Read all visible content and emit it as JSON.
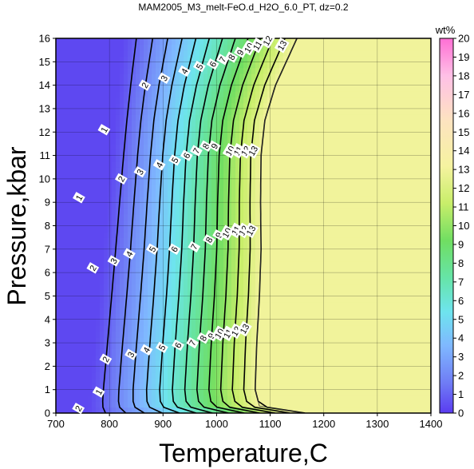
{
  "chart_data": {
    "type": "heatmap",
    "title": "MAM2005_M3_melt-FeO.d_H2O_6.0_PT, dz=0.2",
    "xlabel": "Temperature,C",
    "ylabel": "Pressure,kbar",
    "xlim": [
      700,
      1400
    ],
    "ylim": [
      0,
      16
    ],
    "x_ticks": [
      "700",
      "800",
      "900",
      "1000",
      "1100",
      "1200",
      "1300",
      "1400"
    ],
    "y_ticks": [
      "0",
      "1",
      "2",
      "3",
      "4",
      "5",
      "6",
      "7",
      "8",
      "9",
      "10",
      "11",
      "12",
      "13",
      "14",
      "15",
      "16"
    ],
    "grid": true,
    "colorbar": {
      "label": "wt%",
      "range": [
        0,
        20
      ],
      "ticks": [
        "0",
        "1",
        "2",
        "3",
        "4",
        "5",
        "6",
        "7",
        "8",
        "9",
        "10",
        "11",
        "12",
        "13",
        "14",
        "15",
        "16",
        "17",
        "18",
        "19",
        "20"
      ]
    },
    "colors": {
      "low": "#6a5de8",
      "mid_blue": "#7fb6ff",
      "cyan": "#6fe0ee",
      "green": "#70de62",
      "yellow_green": "#dcf070",
      "plateau": "#fdf2a8",
      "pink_top": "#ff7fd8"
    },
    "plateau_value": 13,
    "solidus_temperature_by_pressure": [
      {
        "p": 0,
        "t": 1165
      },
      {
        "p": 0.3,
        "t": 1080
      },
      {
        "p": 1,
        "t": 1072
      },
      {
        "p": 3,
        "t": 1075
      },
      {
        "p": 5,
        "t": 1080
      },
      {
        "p": 7,
        "t": 1083
      },
      {
        "p": 9,
        "t": 1082
      },
      {
        "p": 11,
        "t": 1083
      },
      {
        "p": 12.5,
        "t": 1090
      },
      {
        "p": 14,
        "t": 1110
      },
      {
        "p": 15,
        "t": 1130
      },
      {
        "p": 16,
        "t": 1150
      }
    ],
    "contour_labels": [
      {
        "text": "1",
        "t": 790,
        "p": 12.1
      },
      {
        "text": "2",
        "t": 866,
        "p": 14.0
      },
      {
        "text": "3",
        "t": 902,
        "p": 14.3
      },
      {
        "text": "4",
        "t": 940,
        "p": 14.6
      },
      {
        "text": "5",
        "t": 968,
        "p": 14.8
      },
      {
        "text": "6",
        "t": 993,
        "p": 14.9
      },
      {
        "text": "7",
        "t": 1011,
        "p": 15.1
      },
      {
        "text": "8",
        "t": 1028,
        "p": 15.2
      },
      {
        "text": "9",
        "t": 1044,
        "p": 15.4
      },
      {
        "text": "10",
        "t": 1060,
        "p": 15.6
      },
      {
        "text": "11",
        "t": 1076,
        "p": 15.7
      },
      {
        "text": "12",
        "t": 1095,
        "p": 15.9
      },
      {
        "text": "13",
        "t": 1122,
        "p": 15.7
      },
      {
        "text": "1",
        "t": 743,
        "p": 9.2
      },
      {
        "text": "2",
        "t": 822,
        "p": 10.0
      },
      {
        "text": "3",
        "t": 857,
        "p": 10.3
      },
      {
        "text": "4",
        "t": 893,
        "p": 10.6
      },
      {
        "text": "5",
        "t": 922,
        "p": 10.8
      },
      {
        "text": "6",
        "t": 944,
        "p": 11.0
      },
      {
        "text": "7",
        "t": 962,
        "p": 11.2
      },
      {
        "text": "8",
        "t": 980,
        "p": 11.4
      },
      {
        "text": "9",
        "t": 996,
        "p": 11.4
      },
      {
        "text": "10",
        "t": 1025,
        "p": 11.2
      },
      {
        "text": "11",
        "t": 1040,
        "p": 11.2
      },
      {
        "text": "12",
        "t": 1054,
        "p": 11.2
      },
      {
        "text": "13",
        "t": 1068,
        "p": 11.2
      },
      {
        "text": "2",
        "t": 769,
        "p": 6.2
      },
      {
        "text": "3",
        "t": 808,
        "p": 6.5
      },
      {
        "text": "4",
        "t": 837,
        "p": 6.8
      },
      {
        "text": "5",
        "t": 880,
        "p": 7.0
      },
      {
        "text": "6",
        "t": 921,
        "p": 7.0
      },
      {
        "text": "7",
        "t": 958,
        "p": 7.1
      },
      {
        "text": "8",
        "t": 986,
        "p": 7.4
      },
      {
        "text": "9",
        "t": 1004,
        "p": 7.6
      },
      {
        "text": "10",
        "t": 1019,
        "p": 7.7
      },
      {
        "text": "11",
        "t": 1036,
        "p": 7.8
      },
      {
        "text": "12",
        "t": 1050,
        "p": 7.8
      },
      {
        "text": "13",
        "t": 1064,
        "p": 7.8
      },
      {
        "text": "2",
        "t": 793,
        "p": 2.3
      },
      {
        "text": "3",
        "t": 840,
        "p": 2.5
      },
      {
        "text": "4",
        "t": 869,
        "p": 2.7
      },
      {
        "text": "5",
        "t": 898,
        "p": 2.8
      },
      {
        "text": "6",
        "t": 928,
        "p": 2.9
      },
      {
        "text": "7",
        "t": 955,
        "p": 3.0
      },
      {
        "text": "8",
        "t": 975,
        "p": 3.2
      },
      {
        "text": "9",
        "t": 990,
        "p": 3.3
      },
      {
        "text": "10",
        "t": 1005,
        "p": 3.4
      },
      {
        "text": "11",
        "t": 1021,
        "p": 3.4
      },
      {
        "text": "12",
        "t": 1036,
        "p": 3.5
      },
      {
        "text": "13",
        "t": 1052,
        "p": 3.6
      },
      {
        "text": "1",
        "t": 780,
        "p": 0.9
      },
      {
        "text": "2",
        "t": 742,
        "p": 0.2
      }
    ]
  }
}
